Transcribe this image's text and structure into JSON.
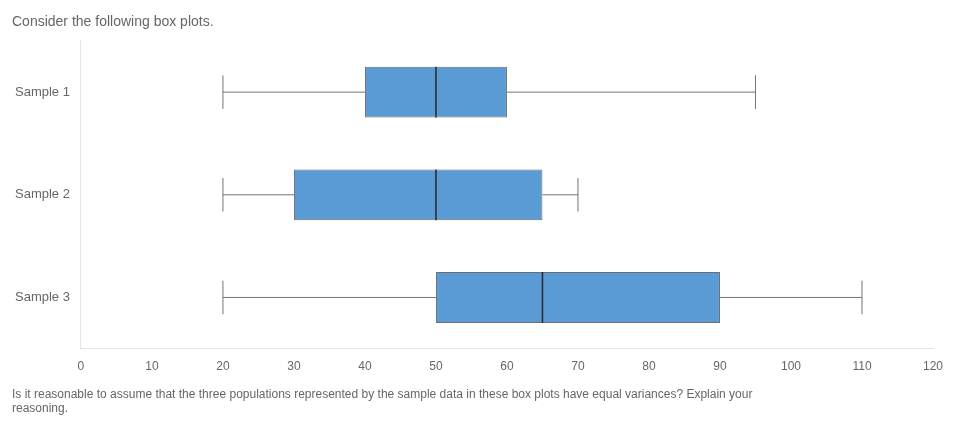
{
  "chart_data": {
    "type": "box",
    "title": "Consider the following box plots.",
    "annotations": [
      "Is it reasonable to assume that the three populations represented by the sample data in these box plots have equal variances? Explain your\nreasoning."
    ],
    "orientation": "horizontal",
    "categories": [
      "Sample 1",
      "Sample 2",
      "Sample 3"
    ],
    "values": [
      {
        "whisker_low": 20,
        "q1": 40,
        "median": 50,
        "q3": 60,
        "whisker_high": 95
      },
      {
        "whisker_low": 20,
        "q1": 30,
        "median": 50,
        "q3": 65,
        "whisker_high": 70
      },
      {
        "whisker_low": 20,
        "q1": 50,
        "median": 65,
        "q3": 90,
        "whisker_high": 110
      }
    ],
    "color": "#5B9BD5",
    "xlim": [
      0,
      120
    ],
    "xticks": [
      0,
      10,
      20,
      30,
      40,
      50,
      60,
      70,
      80,
      90,
      100,
      110,
      120
    ],
    "grid": false
  }
}
